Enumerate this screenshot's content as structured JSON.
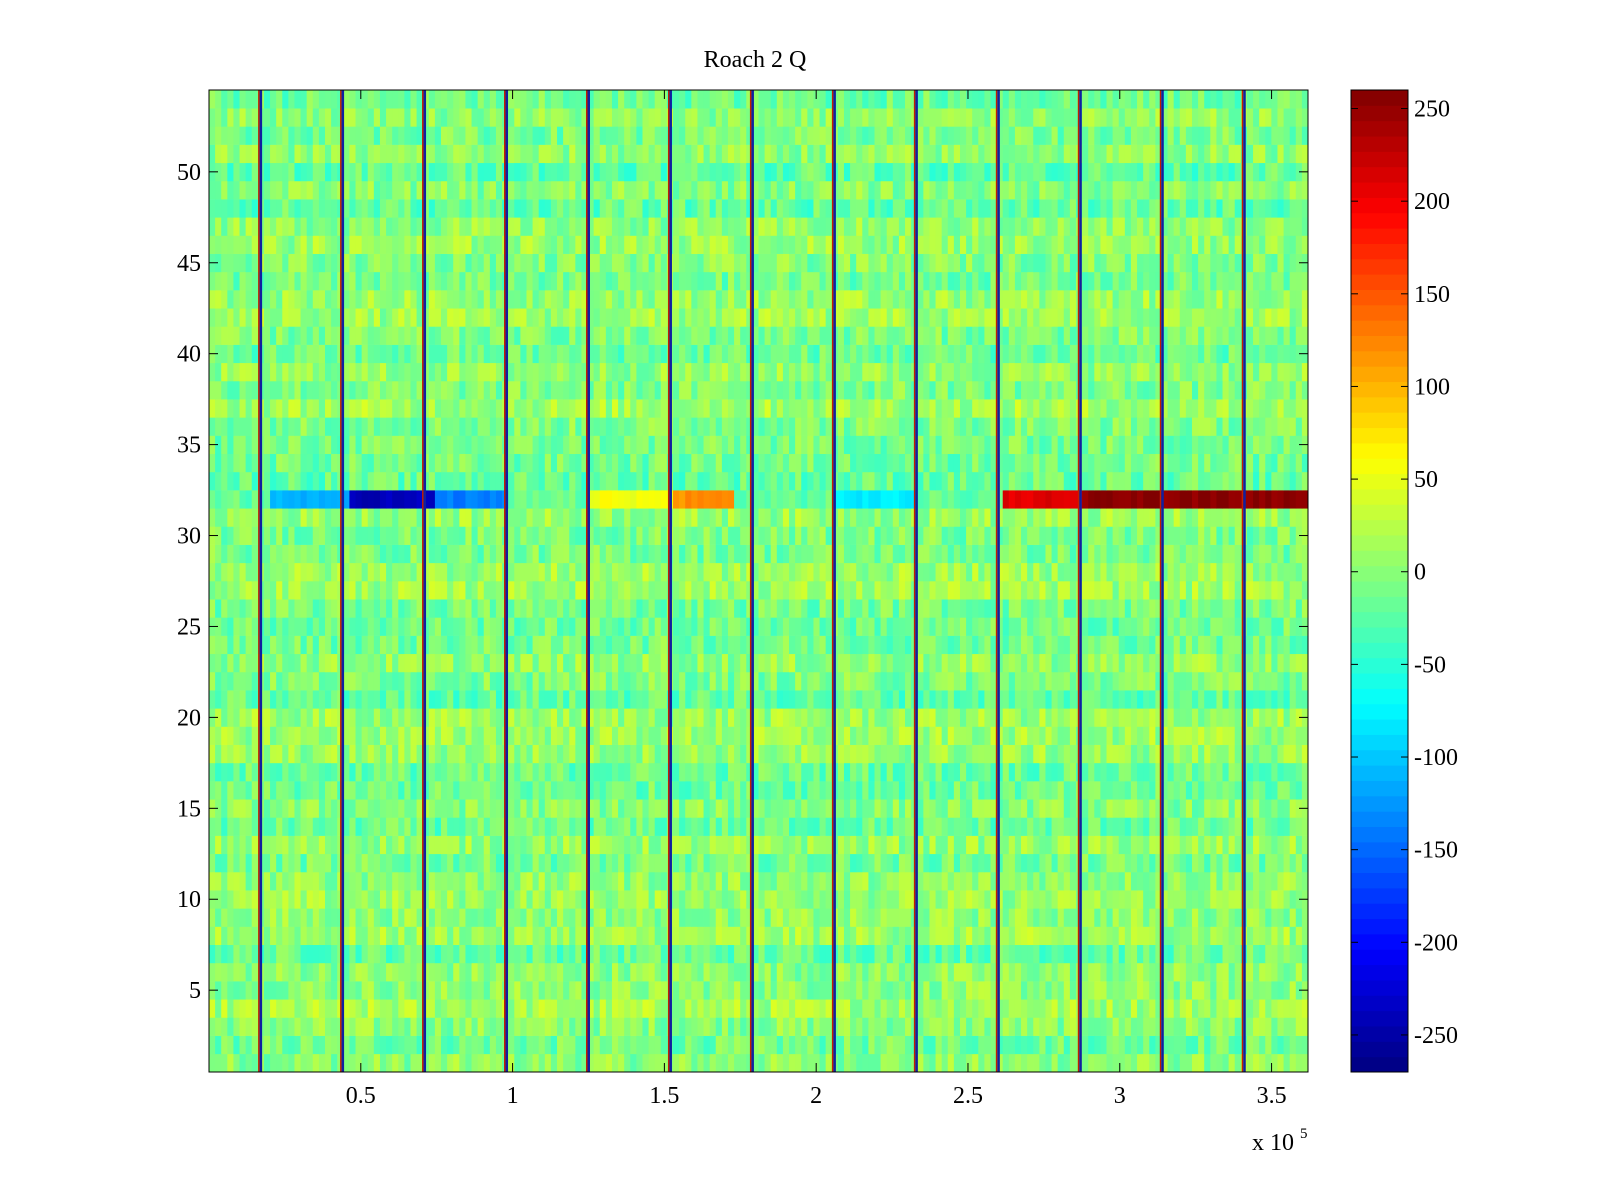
{
  "chart_data": {
    "type": "heatmap",
    "title": "Roach 2 Q",
    "xlabel": "",
    "ylabel": "",
    "x_range": [
      0,
      362000
    ],
    "y_range": [
      0.5,
      54.5
    ],
    "x_ticks": [
      {
        "value": 50000,
        "label": "0.5"
      },
      {
        "value": 100000,
        "label": "1"
      },
      {
        "value": 150000,
        "label": "1.5"
      },
      {
        "value": 200000,
        "label": "2"
      },
      {
        "value": 250000,
        "label": "2.5"
      },
      {
        "value": 300000,
        "label": "3"
      },
      {
        "value": 350000,
        "label": "3.5"
      }
    ],
    "x_exponent": {
      "base": "x 10",
      "power": "5"
    },
    "y_ticks": [
      {
        "value": 5,
        "label": "5"
      },
      {
        "value": 10,
        "label": "10"
      },
      {
        "value": 15,
        "label": "15"
      },
      {
        "value": 20,
        "label": "20"
      },
      {
        "value": 25,
        "label": "25"
      },
      {
        "value": 30,
        "label": "30"
      },
      {
        "value": 35,
        "label": "35"
      },
      {
        "value": 40,
        "label": "40"
      },
      {
        "value": 45,
        "label": "45"
      },
      {
        "value": 50,
        "label": "50"
      }
    ],
    "colorbar": {
      "colormap": "jet",
      "range": [
        -270,
        260
      ],
      "ticks": [
        {
          "value": 250,
          "label": "250"
        },
        {
          "value": 200,
          "label": "200"
        },
        {
          "value": 150,
          "label": "150"
        },
        {
          "value": 100,
          "label": "100"
        },
        {
          "value": 50,
          "label": "50"
        },
        {
          "value": 0,
          "label": "0"
        },
        {
          "value": -50,
          "label": "-50"
        },
        {
          "value": -100,
          "label": "-100"
        },
        {
          "value": -150,
          "label": "-150"
        },
        {
          "value": -200,
          "label": "-200"
        },
        {
          "value": -250,
          "label": "-250"
        }
      ]
    },
    "rows": 54,
    "vertical_boundaries": [
      17000,
      44000,
      71000,
      98000,
      125000,
      152000,
      179000,
      206000,
      233000,
      260000,
      287000,
      314000,
      341000
    ],
    "strong_band_values": {
      "row": 32,
      "segments": [
        {
          "x0": 20000,
          "x1": 47000,
          "value": -110
        },
        {
          "x0": 47000,
          "x1": 74000,
          "value": -240
        },
        {
          "x0": 74000,
          "x1": 99000,
          "value": -140
        },
        {
          "x0": 125000,
          "x1": 152000,
          "value": 55
        },
        {
          "x0": 152000,
          "x1": 172000,
          "value": 120
        },
        {
          "x0": 206000,
          "x1": 233000,
          "value": -80
        },
        {
          "x0": 262000,
          "x1": 287000,
          "value": 210
        },
        {
          "x0": 287000,
          "x1": 362000,
          "value": 255
        }
      ]
    },
    "legend": "colorbar right"
  }
}
